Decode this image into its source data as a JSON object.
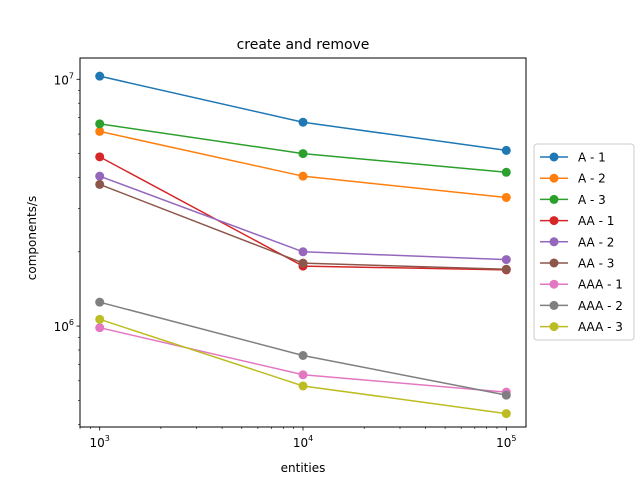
{
  "chart_data": {
    "type": "line",
    "title": "create and remove",
    "xlabel": "entities",
    "ylabel": "components/s",
    "x_scale": "log",
    "y_scale": "log",
    "x": [
      1000,
      10000,
      100000
    ],
    "x_tick_labels": [
      {
        "base": "10",
        "exp": "3"
      },
      {
        "base": "10",
        "exp": "4"
      },
      {
        "base": "10",
        "exp": "5"
      }
    ],
    "y_tick_labels": [
      {
        "value": 1000000,
        "base": "10",
        "exp": "6"
      },
      {
        "value": 10000000,
        "base": "10",
        "exp": "7"
      }
    ],
    "xlim": [
      800,
      125000
    ],
    "ylim": [
      390000,
      12200000
    ],
    "grid": false,
    "legend_position": "outside-right",
    "series": [
      {
        "name": "A - 1",
        "color": "#1f77b4",
        "values": [
          10300000,
          6700000,
          5150000
        ]
      },
      {
        "name": "A - 2",
        "color": "#ff7f0e",
        "values": [
          6150000,
          4050000,
          3320000
        ]
      },
      {
        "name": "A - 3",
        "color": "#2ca02c",
        "values": [
          6600000,
          5000000,
          4200000
        ]
      },
      {
        "name": "AA - 1",
        "color": "#d62728",
        "values": [
          4850000,
          1750000,
          1690000
        ]
      },
      {
        "name": "AA - 2",
        "color": "#9467bd",
        "values": [
          4050000,
          2000000,
          1860000
        ]
      },
      {
        "name": "AA - 3",
        "color": "#8c564b",
        "values": [
          3750000,
          1800000,
          1700000
        ]
      },
      {
        "name": "AAA - 1",
        "color": "#e377c2",
        "values": [
          985000,
          635000,
          540000
        ]
      },
      {
        "name": "AAA - 2",
        "color": "#7f7f7f",
        "values": [
          1250000,
          760000,
          525000
        ]
      },
      {
        "name": "AAA - 3",
        "color": "#bcbd22",
        "values": [
          1065000,
          572000,
          442000
        ]
      }
    ]
  }
}
